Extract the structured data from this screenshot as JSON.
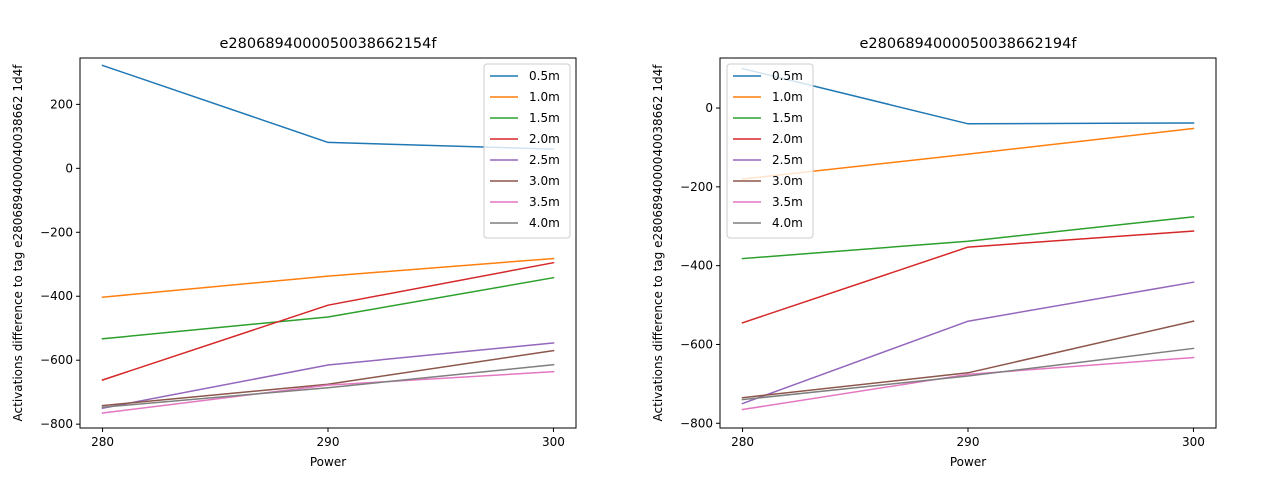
{
  "chart_data": [
    {
      "type": "line",
      "title": "e2806894000050038662154f",
      "xlabel": "Power",
      "ylabel": "Activations difference to tag e2806894000040038662 1d4f",
      "x": [
        280,
        290,
        300
      ],
      "x_ticks": [
        "280",
        "290",
        "300"
      ],
      "xlim": [
        279,
        301
      ],
      "ylim": [
        -812,
        345
      ],
      "y_ticks": [
        200,
        0,
        -200,
        -400,
        -600,
        -800
      ],
      "y_tick_labels": [
        "200",
        "0",
        "−200",
        "−400",
        "−600",
        "−800"
      ],
      "legend_position": "top-right",
      "series": [
        {
          "name": "0.5m",
          "color": "#1f77b4",
          "values": [
            322,
            81,
            60
          ]
        },
        {
          "name": "1.0m",
          "color": "#ff7f0e",
          "values": [
            -403,
            -337,
            -282
          ]
        },
        {
          "name": "1.5m",
          "color": "#2ca02c",
          "values": [
            -533,
            -465,
            -342
          ]
        },
        {
          "name": "2.0m",
          "color": "#d62728",
          "values": [
            -662,
            -428,
            -295
          ]
        },
        {
          "name": "2.5m",
          "color": "#9467bd",
          "values": [
            -750,
            -615,
            -546
          ]
        },
        {
          "name": "3.0m",
          "color": "#8c564b",
          "values": [
            -742,
            -675,
            -570
          ]
        },
        {
          "name": "3.5m",
          "color": "#e377c2",
          "values": [
            -765,
            -678,
            -636
          ]
        },
        {
          "name": "4.0m",
          "color": "#7f7f7f",
          "values": [
            -747,
            -686,
            -614
          ]
        }
      ]
    },
    {
      "type": "line",
      "title": "e2806894000050038662194f",
      "xlabel": "Power",
      "ylabel": "Activations difference to tag e2806894000040038662 1d4f",
      "x": [
        280,
        290,
        300
      ],
      "x_ticks": [
        "280",
        "290",
        "300"
      ],
      "xlim": [
        279,
        301
      ],
      "ylim": [
        -812,
        127
      ],
      "y_ticks": [
        0,
        -200,
        -400,
        -600,
        -800
      ],
      "y_tick_labels": [
        "0",
        "−200",
        "−400",
        "−600",
        "−800"
      ],
      "legend_position": "top-left",
      "series": [
        {
          "name": "0.5m",
          "color": "#1f77b4",
          "values": [
            100,
            -40,
            -38
          ]
        },
        {
          "name": "1.0m",
          "color": "#ff7f0e",
          "values": [
            -180,
            -117,
            -52
          ]
        },
        {
          "name": "1.5m",
          "color": "#2ca02c",
          "values": [
            -382,
            -338,
            -276
          ]
        },
        {
          "name": "2.0m",
          "color": "#d62728",
          "values": [
            -545,
            -353,
            -312
          ]
        },
        {
          "name": "2.5m",
          "color": "#9467bd",
          "values": [
            -750,
            -541,
            -442
          ]
        },
        {
          "name": "3.0m",
          "color": "#8c564b",
          "values": [
            -735,
            -672,
            -541
          ]
        },
        {
          "name": "3.5m",
          "color": "#e377c2",
          "values": [
            -765,
            -676,
            -633
          ]
        },
        {
          "name": "4.0m",
          "color": "#7f7f7f",
          "values": [
            -740,
            -680,
            -610
          ]
        }
      ]
    }
  ]
}
